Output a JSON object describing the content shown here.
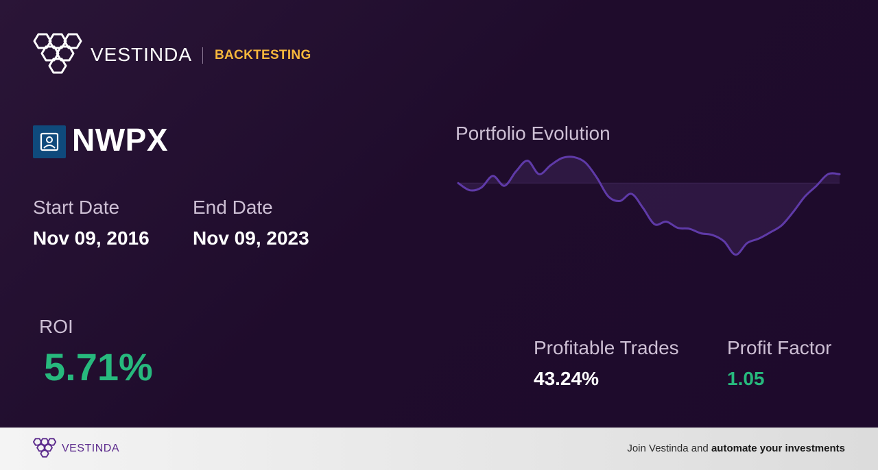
{
  "header": {
    "brand": "VESTINDA",
    "section": "BACKTESTING"
  },
  "ticker": {
    "symbol": "NWPX",
    "icon": "building-icon"
  },
  "dates": {
    "start_label": "Start Date",
    "start_value": "Nov 09, 2016",
    "end_label": "End Date",
    "end_value": "Nov 09, 2023"
  },
  "roi": {
    "label": "ROI",
    "value": "5.71%"
  },
  "portfolio": {
    "title": "Portfolio Evolution"
  },
  "chart_data": {
    "type": "line",
    "title": "Portfolio Evolution",
    "baseline": 0,
    "ylim": [
      -10,
      3
    ],
    "line_color": "#5f3aa8",
    "fill_color": "#3a2256",
    "values": [
      0,
      -0.8,
      -0.5,
      0.8,
      -0.3,
      1.3,
      2.5,
      1.0,
      2.0,
      2.8,
      2.9,
      2.3,
      0.6,
      -1.5,
      -2.0,
      -1.2,
      -2.8,
      -4.6,
      -4.3,
      -5.0,
      -5.1,
      -5.6,
      -5.8,
      -6.5,
      -8.0,
      -6.7,
      -6.2,
      -5.5,
      -4.7,
      -3.2,
      -1.5,
      -0.3,
      1.0,
      1.0
    ]
  },
  "stats": {
    "trades_label": "Profitable Trades",
    "trades_value": "43.24%",
    "pf_label": "Profit Factor",
    "pf_value": "1.05"
  },
  "footer": {
    "brand": "VESTINDA",
    "cta_prefix": "Join Vestinda and ",
    "cta_bold": "automate your investments"
  },
  "colors": {
    "accent": "#f6b73c",
    "positive": "#27b97d",
    "brand_purple": "#5b2a8c"
  }
}
